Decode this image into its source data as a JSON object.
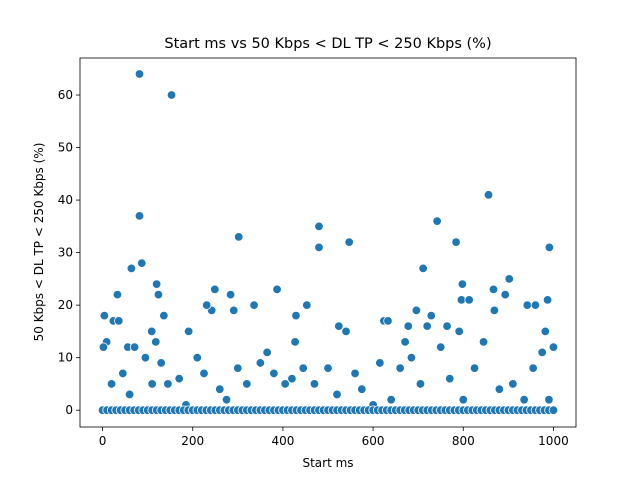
{
  "chart_data": {
    "type": "scatter",
    "title": "Start ms vs 50 Kbps < DL TP < 250 Kbps (%)",
    "x_label": "Start ms",
    "y_label": "50 Kbps < DL TP < 250 Kbps (%)",
    "color": "#1f77b4",
    "xlim": [
      -50,
      1050
    ],
    "ylim": [
      -3.2,
      67.05
    ],
    "xticks": [
      0,
      200,
      400,
      600,
      800,
      1000
    ],
    "yticks": [
      0,
      10,
      20,
      30,
      40,
      50,
      60
    ],
    "grid": false,
    "x": [
      82,
      153,
      82,
      87,
      64,
      4,
      24,
      36,
      33,
      120,
      124,
      136,
      9,
      2,
      56,
      71,
      109,
      118,
      191,
      242,
      231,
      249,
      284,
      291,
      302,
      336,
      387,
      427,
      429,
      453,
      480,
      480,
      547,
      524,
      540,
      624,
      633,
      671,
      678,
      696,
      711,
      720,
      742,
      729,
      764,
      784,
      798,
      796,
      813,
      791,
      856,
      867,
      869,
      893,
      902,
      942,
      960,
      991,
      987,
      982,
      1000,
      20,
      45,
      60,
      95,
      110,
      130,
      145,
      170,
      185,
      210,
      225,
      260,
      275,
      300,
      320,
      350,
      365,
      380,
      405,
      420,
      445,
      470,
      500,
      520,
      560,
      575,
      600,
      615,
      640,
      660,
      685,
      705,
      750,
      770,
      800,
      825,
      845,
      880,
      910,
      935,
      955,
      975,
      990,
      0,
      10,
      20,
      30,
      40,
      50,
      60,
      70,
      80,
      90,
      100,
      110,
      120,
      130,
      140,
      150,
      160,
      170,
      180,
      190,
      200,
      210,
      220,
      230,
      240,
      250,
      260,
      270,
      280,
      290,
      300,
      310,
      320,
      330,
      340,
      350,
      360,
      370,
      380,
      390,
      400,
      410,
      420,
      430,
      440,
      450,
      460,
      470,
      480,
      490,
      500,
      510,
      520,
      530,
      540,
      550,
      560,
      570,
      580,
      590,
      600,
      610,
      620,
      630,
      640,
      650,
      660,
      670,
      680,
      690,
      700,
      710,
      720,
      730,
      740,
      750,
      760,
      770,
      780,
      790,
      800,
      810,
      820,
      830,
      840,
      850,
      860,
      870,
      880,
      890,
      900,
      910,
      920,
      930,
      940,
      950,
      960,
      970,
      980,
      990,
      1000
    ],
    "values": [
      64,
      60,
      37,
      28,
      27,
      18,
      17,
      17,
      22,
      24,
      22,
      18,
      13,
      12,
      12,
      12,
      15,
      13,
      15,
      19,
      20,
      23,
      22,
      19,
      33,
      20,
      23,
      13,
      18,
      20,
      35,
      31,
      32,
      16,
      15,
      17,
      17,
      13,
      16,
      19,
      27,
      16,
      36,
      18,
      16,
      32,
      24,
      21,
      21,
      15,
      41,
      23,
      19,
      22,
      25,
      20,
      20,
      31,
      21,
      15,
      12,
      5,
      7,
      3,
      10,
      5,
      9,
      5,
      6,
      1,
      10,
      7,
      4,
      2,
      8,
      5,
      9,
      11,
      7,
      5,
      6,
      8,
      5,
      8,
      3,
      7,
      4,
      1,
      9,
      2,
      8,
      10,
      5,
      12,
      6,
      2,
      8,
      13,
      4,
      5,
      2,
      8,
      11,
      2,
      0,
      0,
      0,
      0,
      0,
      0,
      0,
      0,
      0,
      0,
      0,
      0,
      0,
      0,
      0,
      0,
      0,
      0,
      0,
      0,
      0,
      0,
      0,
      0,
      0,
      0,
      0,
      0,
      0,
      0,
      0,
      0,
      0,
      0,
      0,
      0,
      0,
      0,
      0,
      0,
      0,
      0,
      0,
      0,
      0,
      0,
      0,
      0,
      0,
      0,
      0,
      0,
      0,
      0,
      0,
      0,
      0,
      0,
      0,
      0,
      0,
      0,
      0,
      0,
      0,
      0,
      0,
      0,
      0,
      0,
      0,
      0,
      0,
      0,
      0,
      0,
      0,
      0,
      0,
      0,
      0,
      0,
      0,
      0,
      0,
      0,
      0,
      0,
      0,
      0,
      0,
      0,
      0,
      0,
      0,
      0,
      0,
      0,
      0,
      0,
      0
    ]
  }
}
